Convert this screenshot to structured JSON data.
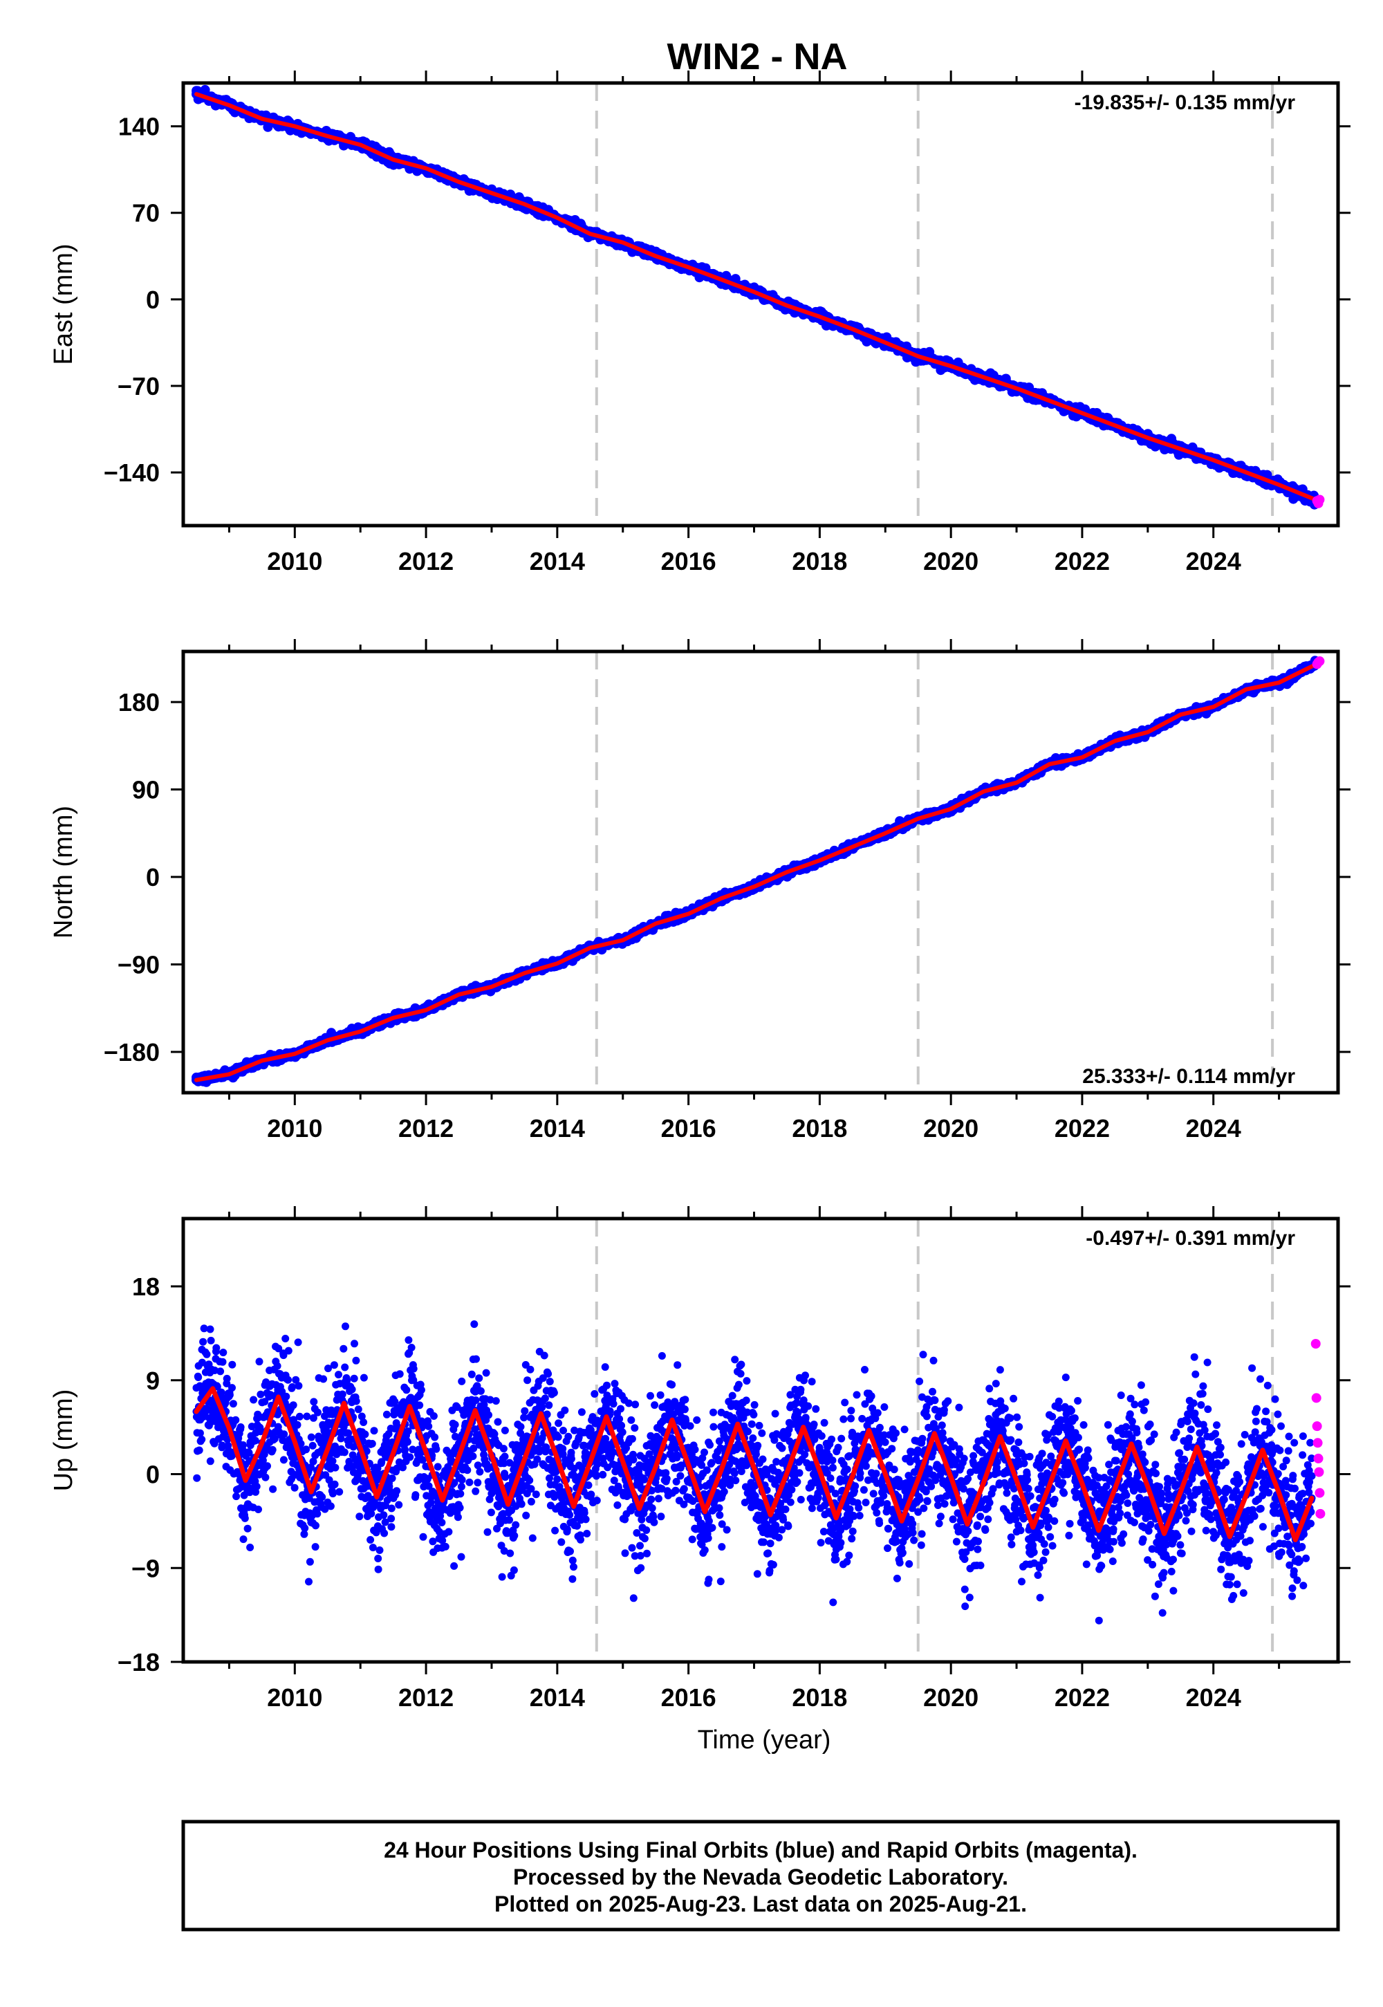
{
  "page": {
    "title": "WIN2 - NA",
    "footer_lines": [
      "24 Hour Positions Using Final Orbits (blue) and Rapid Orbits (magenta).",
      "Processed by the Nevada Geodetic Laboratory.",
      "Plotted on 2025-Aug-23. Last data on 2025-Aug-21."
    ]
  },
  "colors": {
    "final_orbits": "#0000ff",
    "rapid_orbits": "#ff00ff",
    "model_fit": "#ff0000",
    "event_lines": "#c8c8c8"
  },
  "chart_data": [
    {
      "type": "scatter",
      "ylabel": "East (mm)",
      "xlabel": "",
      "xlim": [
        2008.3,
        2025.9
      ],
      "ylim": [
        -183,
        175
      ],
      "x_ticks": [
        2010,
        2012,
        2014,
        2016,
        2018,
        2020,
        2022,
        2024
      ],
      "x_tick_labels": [
        "2010",
        "2012",
        "2014",
        "2016",
        "2018",
        "2020",
        "2022",
        "2024"
      ],
      "y_ticks": [
        140,
        70,
        0,
        -70,
        -140
      ],
      "y_tick_labels": [
        "140",
        "70",
        "0",
        "−70",
        "−140"
      ],
      "rate_label": "-19.835+/- 0.135 mm/yr",
      "rate_position": "top-right",
      "event_lines": [
        2014.6,
        2019.5,
        2024.9
      ],
      "series": [
        {
          "name": "",
          "kind": "final-orbits-scatter",
          "color": "#0000ff",
          "x": [
            2008.5,
            2009.0,
            2009.5,
            2010.0,
            2010.5,
            2011.0,
            2011.5,
            2012.0,
            2012.5,
            2013.0,
            2013.5,
            2014.0,
            2014.5,
            2015.0,
            2015.5,
            2016.0,
            2016.5,
            2017.0,
            2017.5,
            2018.0,
            2018.5,
            2019.0,
            2019.5,
            2020.0,
            2020.5,
            2021.0,
            2021.5,
            2022.0,
            2022.5,
            2023.0,
            2023.5,
            2024.0,
            2024.5,
            2025.0,
            2025.55
          ],
          "y": [
            166,
            157,
            146,
            140,
            132,
            125,
            113,
            106,
            95,
            86,
            77,
            66,
            53,
            46,
            35,
            26,
            16,
            6,
            -5,
            -14,
            -24,
            -35,
            -46,
            -54,
            -63,
            -72,
            -82,
            -92,
            -102,
            -112,
            -121,
            -130,
            -140,
            -150,
            -163
          ]
        },
        {
          "name": "",
          "kind": "rapid-orbits-scatter",
          "color": "#ff00ff",
          "x": [
            2025.58,
            2025.6,
            2025.62
          ],
          "y": [
            -163,
            -165,
            -162
          ]
        },
        {
          "name": "",
          "kind": "model-fit-line",
          "color": "#ff0000",
          "x": [
            2008.5,
            2009.0,
            2009.5,
            2010.0,
            2010.5,
            2011.0,
            2011.5,
            2012.0,
            2012.5,
            2013.0,
            2013.5,
            2014.0,
            2014.5,
            2015.0,
            2015.5,
            2016.0,
            2016.5,
            2017.0,
            2017.5,
            2018.0,
            2018.5,
            2019.0,
            2019.5,
            2020.0,
            2020.5,
            2021.0,
            2021.5,
            2022.0,
            2022.5,
            2023.0,
            2023.5,
            2024.0,
            2024.5,
            2025.0,
            2025.6
          ],
          "y": [
            166,
            157,
            146,
            140,
            132,
            125,
            113,
            106,
            95,
            86,
            77,
            66,
            53,
            46,
            35,
            26,
            16,
            6,
            -5,
            -14,
            -24,
            -35,
            -46,
            -54,
            -63,
            -72,
            -82,
            -92,
            -102,
            -112,
            -121,
            -130,
            -140,
            -150,
            -163
          ]
        }
      ]
    },
    {
      "type": "scatter",
      "ylabel": "North (mm)",
      "xlabel": "",
      "xlim": [
        2008.3,
        2025.9
      ],
      "ylim": [
        -222,
        232
      ],
      "x_ticks": [
        2010,
        2012,
        2014,
        2016,
        2018,
        2020,
        2022,
        2024
      ],
      "x_tick_labels": [
        "2010",
        "2012",
        "2014",
        "2016",
        "2018",
        "2020",
        "2022",
        "2024"
      ],
      "y_ticks": [
        180,
        90,
        0,
        -90,
        -180
      ],
      "y_tick_labels": [
        "180",
        "90",
        "0",
        "−90",
        "−180"
      ],
      "rate_label": "25.333+/- 0.114 mm/yr",
      "rate_position": "bottom-right",
      "event_lines": [
        2014.6,
        2019.5,
        2024.9
      ],
      "series": [
        {
          "name": "",
          "kind": "final-orbits-scatter",
          "color": "#0000ff",
          "x": [
            2008.5,
            2009.0,
            2009.5,
            2010.0,
            2010.5,
            2011.0,
            2011.5,
            2012.0,
            2012.5,
            2013.0,
            2013.5,
            2014.0,
            2014.5,
            2015.0,
            2015.5,
            2016.0,
            2016.5,
            2017.0,
            2017.5,
            2018.0,
            2018.5,
            2019.0,
            2019.5,
            2020.0,
            2020.5,
            2021.0,
            2021.5,
            2022.0,
            2022.5,
            2023.0,
            2023.5,
            2024.0,
            2024.5,
            2025.0,
            2025.55
          ],
          "y": [
            -209,
            -203,
            -189,
            -182,
            -168,
            -159,
            -145,
            -137,
            -121,
            -113,
            -99,
            -89,
            -73,
            -65,
            -48,
            -38,
            -22,
            -10,
            5,
            17,
            31,
            45,
            60,
            70,
            88,
            97,
            116,
            123,
            140,
            149,
            167,
            175,
            193,
            200,
            218
          ]
        },
        {
          "name": "",
          "kind": "rapid-orbits-scatter",
          "color": "#ff00ff",
          "x": [
            2025.58,
            2025.6,
            2025.62
          ],
          "y": [
            219,
            221,
            222
          ]
        },
        {
          "name": "",
          "kind": "model-fit-line",
          "color": "#ff0000",
          "x": [
            2008.5,
            2009.0,
            2009.5,
            2010.0,
            2010.5,
            2011.0,
            2011.5,
            2012.0,
            2012.5,
            2013.0,
            2013.5,
            2014.0,
            2014.5,
            2015.0,
            2015.5,
            2016.0,
            2016.5,
            2017.0,
            2017.5,
            2018.0,
            2018.5,
            2019.0,
            2019.5,
            2020.0,
            2020.5,
            2021.0,
            2021.5,
            2022.0,
            2022.5,
            2023.0,
            2023.5,
            2024.0,
            2024.5,
            2025.0,
            2025.6
          ],
          "y": [
            -209,
            -203,
            -189,
            -182,
            -168,
            -159,
            -145,
            -137,
            -121,
            -113,
            -99,
            -89,
            -73,
            -65,
            -48,
            -38,
            -22,
            -10,
            5,
            17,
            31,
            45,
            60,
            70,
            88,
            97,
            116,
            123,
            140,
            149,
            167,
            175,
            193,
            200,
            220
          ]
        }
      ]
    },
    {
      "type": "scatter",
      "ylabel": "Up (mm)",
      "xlabel": "Time (year)",
      "xlim": [
        2008.3,
        2025.9
      ],
      "ylim": [
        -18,
        24.5
      ],
      "x_ticks": [
        2010,
        2012,
        2014,
        2016,
        2018,
        2020,
        2022,
        2024
      ],
      "x_tick_labels": [
        "2010",
        "2012",
        "2014",
        "2016",
        "2018",
        "2020",
        "2022",
        "2024"
      ],
      "y_ticks": [
        18,
        9,
        0,
        -9,
        -18
      ],
      "y_tick_labels": [
        "18",
        "9",
        "0",
        "−9",
        "−18"
      ],
      "rate_label": "-0.497+/- 0.391 mm/yr",
      "rate_position": "top-right",
      "event_lines": [
        2014.6,
        2019.5,
        2024.9
      ],
      "series": [
        {
          "name": "",
          "kind": "final-orbits-scatter",
          "color": "#0000ff",
          "x": [
            2008.5,
            2008.75,
            2009.0,
            2009.25,
            2009.5,
            2009.75,
            2010.0,
            2010.25,
            2010.5,
            2010.75,
            2011.0,
            2011.25,
            2011.5,
            2011.75,
            2012.0,
            2012.25,
            2012.5,
            2012.75,
            2013.0,
            2013.25,
            2013.5,
            2013.75,
            2014.0,
            2014.25,
            2014.5,
            2014.75,
            2015.0,
            2015.25,
            2015.5,
            2015.75,
            2016.0,
            2016.25,
            2016.5,
            2016.75,
            2017.0,
            2017.25,
            2017.5,
            2017.75,
            2018.0,
            2018.25,
            2018.5,
            2018.75,
            2019.0,
            2019.25,
            2019.5,
            2019.75,
            2020.0,
            2020.25,
            2020.5,
            2020.75,
            2021.0,
            2021.25,
            2021.5,
            2021.75,
            2022.0,
            2022.25,
            2022.5,
            2022.75,
            2023.0,
            2023.25,
            2023.5,
            2023.75,
            2024.0,
            2024.25,
            2024.5,
            2024.75,
            2025.0,
            2025.25,
            2025.5
          ],
          "y": [
            6.0,
            8.2,
            4.4,
            -0.6,
            3.0,
            7.4,
            3.1,
            -1.7,
            2.4,
            6.8,
            2.5,
            -2.2,
            2.0,
            6.5,
            2.1,
            -2.5,
            1.7,
            6.1,
            1.8,
            -2.9,
            1.4,
            5.8,
            1.5,
            -3.1,
            1.1,
            5.5,
            1.2,
            -3.3,
            0.7,
            5.2,
            0.9,
            -3.6,
            0.4,
            4.8,
            0.6,
            -3.9,
            0.1,
            4.5,
            0.3,
            -4.2,
            -0.2,
            4.2,
            0.0,
            -4.5,
            -0.5,
            3.9,
            -0.3,
            -4.8,
            -0.8,
            3.6,
            -0.6,
            -5.1,
            -1.1,
            3.2,
            -0.9,
            -5.4,
            -1.4,
            2.9,
            -1.2,
            -5.7,
            -1.7,
            2.6,
            -1.5,
            -6.0,
            -2.0,
            2.3,
            -1.8,
            -6.3,
            -2.3
          ]
        },
        {
          "name": "",
          "kind": "rapid-orbits-scatter",
          "color": "#ff00ff",
          "x": [
            2025.56,
            2025.57,
            2025.58,
            2025.59,
            2025.6,
            2025.61,
            2025.62,
            2025.63
          ],
          "y": [
            12.5,
            7.3,
            4.6,
            3.0,
            1.5,
            0.2,
            -1.8,
            -3.8
          ]
        },
        {
          "name": "",
          "kind": "model-fit-line",
          "color": "#ff0000",
          "x": [
            2008.5,
            2008.75,
            2009.0,
            2009.25,
            2009.5,
            2009.75,
            2010.0,
            2010.25,
            2010.5,
            2010.75,
            2011.0,
            2011.25,
            2011.5,
            2011.75,
            2012.0,
            2012.25,
            2012.5,
            2012.75,
            2013.0,
            2013.25,
            2013.5,
            2013.75,
            2014.0,
            2014.25,
            2014.5,
            2014.75,
            2015.0,
            2015.25,
            2015.5,
            2015.75,
            2016.0,
            2016.25,
            2016.5,
            2016.75,
            2017.0,
            2017.25,
            2017.5,
            2017.75,
            2018.0,
            2018.25,
            2018.5,
            2018.75,
            2019.0,
            2019.25,
            2019.5,
            2019.75,
            2020.0,
            2020.25,
            2020.5,
            2020.75,
            2021.0,
            2021.25,
            2021.5,
            2021.75,
            2022.0,
            2022.25,
            2022.5,
            2022.75,
            2023.0,
            2023.25,
            2023.5,
            2023.75,
            2024.0,
            2024.25,
            2024.5,
            2024.75,
            2025.0,
            2025.25,
            2025.5
          ],
          "y": [
            6.0,
            8.2,
            4.4,
            -0.6,
            3.0,
            7.4,
            3.1,
            -1.7,
            2.4,
            6.8,
            2.5,
            -2.2,
            2.0,
            6.5,
            2.1,
            -2.5,
            1.7,
            6.1,
            1.8,
            -2.9,
            1.4,
            5.8,
            1.5,
            -3.1,
            1.1,
            5.5,
            1.2,
            -3.3,
            0.7,
            5.2,
            0.9,
            -3.6,
            0.4,
            4.8,
            0.6,
            -3.9,
            0.1,
            4.5,
            0.3,
            -4.2,
            -0.2,
            4.2,
            0.0,
            -4.5,
            -0.5,
            3.9,
            -0.3,
            -4.8,
            -0.8,
            3.6,
            -0.6,
            -5.1,
            -1.1,
            3.2,
            -0.9,
            -5.4,
            -1.4,
            2.9,
            -1.2,
            -5.7,
            -1.7,
            2.6,
            -1.5,
            -6.0,
            -2.0,
            2.3,
            -1.8,
            -6.3,
            -2.3
          ]
        }
      ]
    }
  ]
}
